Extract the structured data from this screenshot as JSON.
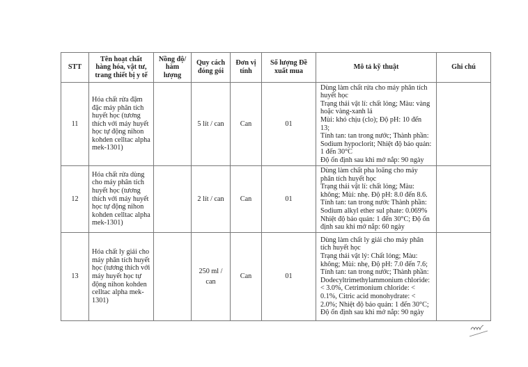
{
  "table": {
    "headers": [
      "STT",
      "Tên hoạt chất hàng hóa, vật tư, trang thiết bị y tế",
      "Nồng độ/ hàm lượng",
      "Quy cách đóng gói",
      "Đơn vị tính",
      "Số lượng Đề xuất mua",
      "Mô tả kỹ thuật",
      "Ghi chú"
    ],
    "rows": [
      {
        "stt": "11",
        "name": "Hóa chất rửa đậm đặc máy phân tích huyết học (tương thích với máy huyết học tự động nihon kohden celltac alpha mek-1301)",
        "concentration": "",
        "packing": "5 lít / can",
        "unit": "Can",
        "quantity": "01",
        "description": [
          "Dùng làm chất rửa cho máy phân tích huyết học",
          "Trạng thái vật lí: chất lỏng; Màu: vàng hoặc vàng-xanh lá",
          "Mùi: khó chịu (clo); Độ pH: 10 đến 13;",
          "Tính tan: tan trong nước; Thành phần: Sodium hypoclorit; Nhiệt độ bảo quản: 1 đến 30°C",
          "Độ ổn định sau khi mở nắp: 90 ngày"
        ],
        "note": ""
      },
      {
        "stt": "12",
        "name": "Hóa chất rửa dùng cho máy phân tích huyết học (tương thích với máy huyết học tự động nihon kohden celltac alpha mek-1301)",
        "concentration": "",
        "packing": "2 lít / can",
        "unit": "Can",
        "quantity": "01",
        "description": [
          "Dùng làm chất pha loãng cho máy phân tích huyết học",
          "Trạng thái vật lí: chất lỏng; Màu: không; Mùi: nhẹ. Độ pH: 8.0 đến 8.6.",
          "Tính tan: tan trong nước Thành phần: Sodium alkyl ether sul phate: 0.069%",
          "Nhiệt độ bảo quản: 1 đến 30°C; Độ ổn định sau khi mở nắp: 60 ngày"
        ],
        "note": ""
      },
      {
        "stt": "13",
        "name": "Hóa chất ly giải cho máy phân tích huyết học (tương thích với máy huyết học tự động nihon kohden celltac alpha mek-1301)",
        "concentration": "",
        "packing": "250 ml / can",
        "unit": "Can",
        "quantity": "01",
        "description": [
          "Dùng làm chất ly giải cho máy phân tích huyết học",
          "Trạng thái vật lý: Chất lỏng; Màu: không; Mùi: nhẹ, Độ pH: 7.0 đến 7.6;",
          "Tính tan: tan trong nước; Thành phần: Dodecyltrimethylammonium chloride: < 3.0%, Cetrimonium chloride: < 0.1%, Citric acid monohydrate: < 2.0%; Nhiệt độ bảo quản: 1 đến 30°C; Độ ổn định sau khi mở nắp: 90 ngày"
        ],
        "note": ""
      }
    ]
  },
  "signature": "initials"
}
